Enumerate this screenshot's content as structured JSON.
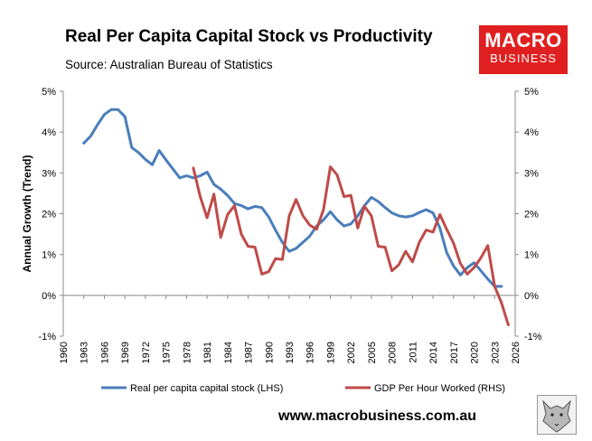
{
  "header": {
    "title": "Real Per Capita Capital Stock vs Productivity",
    "subtitle": "Source: Australian Bureau of Statistics"
  },
  "logo": {
    "line1": "MACRO",
    "line2": "BUSINESS",
    "color": "#e02020"
  },
  "footer": {
    "website": "www.macrobusiness.com.au"
  },
  "wolf_logo_icon": "wolf-head-icon",
  "chart_data": {
    "type": "line",
    "title": "Real Per Capita Capital Stock vs Productivity",
    "ylabel": "Annual Growth (Trend)",
    "xlim": [
      1960,
      2026
    ],
    "ylim": [
      -1,
      5
    ],
    "x_ticks": [
      "1960",
      "1963",
      "1966",
      "1969",
      "1972",
      "1975",
      "1978",
      "1981",
      "1984",
      "1987",
      "1990",
      "1993",
      "1996",
      "1999",
      "2002",
      "2005",
      "2008",
      "2011",
      "2014",
      "2017",
      "2020",
      "2023",
      "2026"
    ],
    "y_ticks_left": [
      "-1%",
      "0%",
      "1%",
      "2%",
      "3%",
      "4%",
      "5%"
    ],
    "y_ticks_right": [
      "-1%",
      "0%",
      "1%",
      "2%",
      "3%",
      "4%",
      "5%"
    ],
    "grid": false,
    "legend_position": "bottom",
    "series": [
      {
        "name": "Real per capita capital stock (LHS)",
        "color": "#4a7ebb",
        "axis": "left",
        "x": [
          1963,
          1964,
          1965,
          1966,
          1967,
          1968,
          1969,
          1970,
          1971,
          1972,
          1973,
          1974,
          1975,
          1976,
          1977,
          1978,
          1979,
          1980,
          1981,
          1982,
          1983,
          1984,
          1985,
          1986,
          1987,
          1988,
          1989,
          1990,
          1991,
          1992,
          1993,
          1994,
          1995,
          1996,
          1997,
          1998,
          1999,
          2000,
          2001,
          2002,
          2003,
          2004,
          2005,
          2006,
          2007,
          2008,
          2009,
          2010,
          2011,
          2012,
          2013,
          2014,
          2015,
          2016,
          2017,
          2018,
          2019,
          2020,
          2021,
          2022,
          2023,
          2024
        ],
        "values": [
          3.73,
          3.9,
          4.18,
          4.43,
          4.55,
          4.55,
          4.38,
          3.62,
          3.5,
          3.33,
          3.2,
          3.55,
          3.32,
          3.1,
          2.88,
          2.93,
          2.88,
          2.93,
          3.02,
          2.72,
          2.6,
          2.45,
          2.25,
          2.2,
          2.12,
          2.18,
          2.15,
          1.92,
          1.6,
          1.3,
          1.08,
          1.15,
          1.3,
          1.45,
          1.7,
          1.85,
          2.05,
          1.85,
          1.7,
          1.75,
          1.95,
          2.2,
          2.4,
          2.3,
          2.15,
          2.02,
          1.95,
          1.92,
          1.95,
          2.03,
          2.1,
          2.02,
          1.65,
          1.05,
          0.72,
          0.5,
          0.68,
          0.8,
          0.6,
          0.4,
          0.22,
          0.22
        ]
      },
      {
        "name": "GDP Per Hour Worked (RHS)",
        "color": "#be4b48",
        "axis": "right",
        "x": [
          1979,
          1980,
          1981,
          1982,
          1983,
          1984,
          1985,
          1986,
          1987,
          1988,
          1989,
          1990,
          1991,
          1992,
          1993,
          1994,
          1995,
          1996,
          1997,
          1998,
          1999,
          2000,
          2001,
          2002,
          2003,
          2004,
          2005,
          2006,
          2007,
          2008,
          2009,
          2010,
          2011,
          2012,
          2013,
          2014,
          2015,
          2016,
          2017,
          2018,
          2019,
          2020,
          2021,
          2022,
          2023,
          2024,
          2025
        ],
        "values": [
          3.12,
          2.42,
          1.9,
          2.48,
          1.42,
          1.98,
          2.2,
          1.5,
          1.2,
          1.18,
          0.52,
          0.58,
          0.9,
          0.88,
          1.95,
          2.35,
          1.95,
          1.72,
          1.62,
          2.1,
          3.15,
          2.95,
          2.42,
          2.45,
          1.65,
          2.18,
          1.95,
          1.2,
          1.18,
          0.6,
          0.75,
          1.08,
          0.82,
          1.3,
          1.6,
          1.55,
          1.98,
          1.62,
          1.28,
          0.78,
          0.52,
          0.68,
          0.92,
          1.22,
          0.22,
          -0.18,
          -0.72
        ]
      }
    ]
  }
}
